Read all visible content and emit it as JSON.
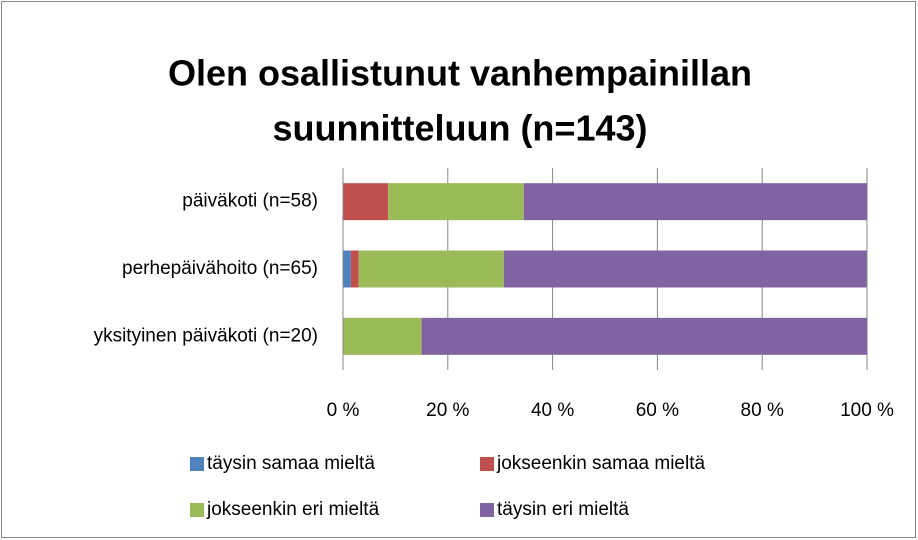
{
  "chart_data": {
    "type": "stacked_bar_horizontal",
    "title": [
      "Olen osallistunut vanhempainillan",
      "suunnitteluun (n=143)"
    ],
    "categories": [
      "päiväkoti (n=58)",
      "perhepäivähoito (n=65)",
      "yksityinen päiväkoti (n=20)"
    ],
    "series": [
      {
        "name": "täysin samaa mieltä",
        "color": "#4f81bd",
        "values": [
          0,
          1.5,
          0
        ]
      },
      {
        "name": "jokseenkin samaa mieltä",
        "color": "#c0504d",
        "values": [
          8.6,
          1.5,
          0
        ]
      },
      {
        "name": "jokseenkin eri mieltä",
        "color": "#9bbb59",
        "values": [
          25.9,
          27.7,
          15
        ]
      },
      {
        "name": "täysin eri mieltä",
        "color": "#8064a2",
        "values": [
          65.5,
          69.2,
          85
        ]
      }
    ],
    "xlim": [
      0,
      100
    ],
    "xticks": [
      {
        "value": 0,
        "label": "0 %"
      },
      {
        "value": 20,
        "label": "20 %"
      },
      {
        "value": 40,
        "label": "40 %"
      },
      {
        "value": 60,
        "label": "60 %"
      },
      {
        "value": 80,
        "label": "80 %"
      },
      {
        "value": 100,
        "label": "100 %"
      }
    ],
    "grid": true,
    "legend": "bottom"
  }
}
